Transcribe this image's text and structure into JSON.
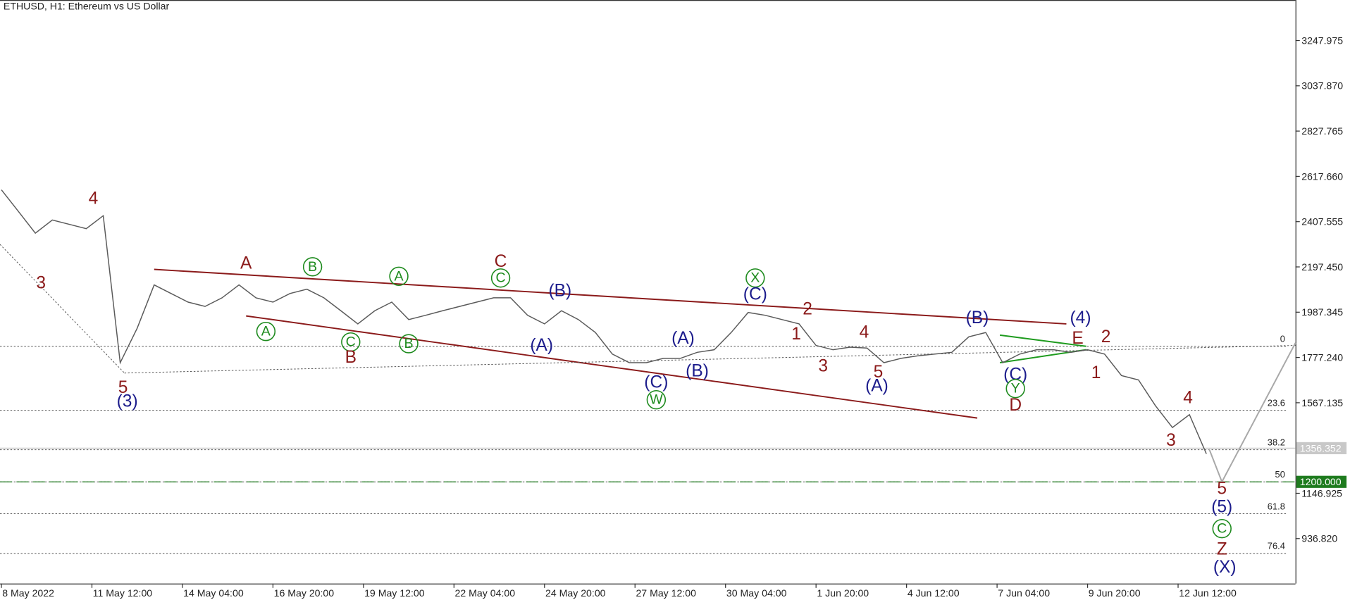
{
  "chart_data": {
    "type": "line",
    "title": "ETHUSD, H1:  Ethereum vs US Dollar",
    "color": "#5a5a5a",
    "x": [
      "2022-05-08 20:00",
      "2022-05-09 08:00",
      "2022-05-09 20:00",
      "2022-05-10 08:00",
      "2022-05-10 20:00",
      "2022-05-11 08:00",
      "2022-05-11 20:00",
      "2022-05-12 08:00",
      "2022-05-12 20:00",
      "2022-05-13 08:00",
      "2022-05-13 20:00",
      "2022-05-14 08:00",
      "2022-05-14 20:00",
      "2022-05-15 08:00",
      "2022-05-15 20:00",
      "2022-05-16 08:00",
      "2022-05-16 20:00",
      "2022-05-17 08:00",
      "2022-05-17 20:00",
      "2022-05-18 08:00",
      "2022-05-18 20:00",
      "2022-05-19 08:00",
      "2022-05-19 20:00",
      "2022-05-20 08:00",
      "2022-05-20 20:00",
      "2022-05-21 08:00",
      "2022-05-21 20:00",
      "2022-05-22 08:00",
      "2022-05-22 20:00",
      "2022-05-23 08:00",
      "2022-05-23 20:00",
      "2022-05-24 08:00",
      "2022-05-24 20:00",
      "2022-05-25 08:00",
      "2022-05-25 20:00",
      "2022-05-26 08:00",
      "2022-05-26 20:00",
      "2022-05-27 08:00",
      "2022-05-27 20:00",
      "2022-05-28 08:00",
      "2022-05-28 20:00",
      "2022-05-29 08:00",
      "2022-05-29 20:00",
      "2022-05-30 08:00",
      "2022-05-30 20:00",
      "2022-05-31 08:00",
      "2022-05-31 20:00",
      "2022-06-01 08:00",
      "2022-06-01 20:00",
      "2022-06-02 08:00",
      "2022-06-02 20:00",
      "2022-06-03 08:00",
      "2022-06-03 20:00",
      "2022-06-04 08:00",
      "2022-06-04 20:00",
      "2022-06-05 08:00",
      "2022-06-05 20:00",
      "2022-06-06 08:00",
      "2022-06-06 20:00",
      "2022-06-07 08:00",
      "2022-06-07 20:00",
      "2022-06-08 08:00",
      "2022-06-08 20:00",
      "2022-06-09 08:00",
      "2022-06-09 20:00",
      "2022-06-10 08:00",
      "2022-06-10 20:00",
      "2022-06-11 08:00",
      "2022-06-11 20:00",
      "2022-06-12 08:00",
      "2022-06-12 20:00",
      "2022-06-13 08:00"
    ],
    "values": [
      2555,
      2455,
      2354,
      2415,
      2395,
      2375,
      2435,
      1753,
      1913,
      2114,
      2074,
      2034,
      2014,
      2054,
      2114,
      2054,
      2034,
      2074,
      2094,
      2054,
      1994,
      1933,
      1994,
      2034,
      1953,
      1973,
      1994,
      2014,
      2034,
      2054,
      2054,
      1973,
      1933,
      1994,
      1953,
      1893,
      1793,
      1753,
      1753,
      1773,
      1773,
      1801,
      1813,
      1893,
      1986,
      1973,
      1953,
      1933,
      1833,
      1813,
      1825,
      1821,
      1753,
      1773,
      1785,
      1793,
      1801,
      1873,
      1893,
      1753,
      1793,
      1813,
      1813,
      1801,
      1813,
      1793,
      1693,
      1673,
      1553,
      1452,
      1512,
      1330
    ],
    "xlim": [
      "2022-05-08 19:00",
      "2022-06-15 23:00"
    ],
    "xticks": [
      {
        "value": "2022-05-08 20:00",
        "label": "8 May 2022"
      },
      {
        "value": "2022-05-11 12:00",
        "label": "11 May 12:00"
      },
      {
        "value": "2022-05-14 04:00",
        "label": "14 May 04:00"
      },
      {
        "value": "2022-05-16 20:00",
        "label": "16 May 20:00"
      },
      {
        "value": "2022-05-19 12:00",
        "label": "19 May 12:00"
      },
      {
        "value": "2022-05-22 04:00",
        "label": "22 May 04:00"
      },
      {
        "value": "2022-05-24 20:00",
        "label": "24 May 20:00"
      },
      {
        "value": "2022-05-27 12:00",
        "label": "27 May 12:00"
      },
      {
        "value": "2022-05-30 04:00",
        "label": "30 May 04:00"
      },
      {
        "value": "2022-06-01 20:00",
        "label": "1 Jun 20:00"
      },
      {
        "value": "2022-06-04 12:00",
        "label": "4 Jun 12:00"
      },
      {
        "value": "2022-06-07 04:00",
        "label": "7 Jun 04:00"
      },
      {
        "value": "2022-06-09 20:00",
        "label": "9 Jun 20:00"
      },
      {
        "value": "2022-06-12 12:00",
        "label": "12 Jun 12:00"
      }
    ],
    "ylim": [
      728,
      3436
    ],
    "yticks": [
      3247.975,
      {
        "value": 3037.87,
        "label": "3037.870"
      },
      2827.765,
      {
        "value": 2617.66,
        "label": "2617.660"
      },
      2407.555,
      {
        "value": 2197.45,
        "label": "2197.450"
      },
      1987.345,
      {
        "value": 1777.24,
        "label": "1777.240"
      },
      1567.135,
      1146.925,
      {
        "value": 936.82,
        "label": "936.820"
      }
    ],
    "fibonacci": {
      "color": "#555555",
      "levels": [
        {
          "level": 0,
          "price": 1829
        },
        {
          "level": 23.6,
          "price": 1532
        },
        {
          "level": 38.2,
          "price": 1349
        },
        {
          "level": 50,
          "price": 1200
        },
        {
          "level": 61.8,
          "price": 1052
        },
        {
          "level": 76.4,
          "price": 868
        }
      ]
    },
    "price_markers": [
      {
        "price": 1356.352,
        "color": "#c8c8c8",
        "line": "solid"
      },
      {
        "price": 1200,
        "label": "1200.000",
        "color": "#1e7b1e",
        "line": "dashed"
      }
    ],
    "trendlines": [
      {
        "color": "#8b1a1a",
        "dash": "solid",
        "points": [
          {
            "x": "2022-05-13 08:00",
            "y": 2186
          },
          {
            "x": "2022-06-09 05:00",
            "y": 1933
          }
        ]
      },
      {
        "color": "#8b1a1a",
        "dash": "solid",
        "points": [
          {
            "x": "2022-05-16 01:00",
            "y": 1970
          },
          {
            "x": "2022-06-06 14:00",
            "y": 1496
          }
        ]
      },
      {
        "color": "#1e9b1e",
        "dash": "solid",
        "points": [
          {
            "x": "2022-06-07 06:00",
            "y": 1881
          },
          {
            "x": "2022-06-09 19:00",
            "y": 1829
          }
        ]
      },
      {
        "color": "#1e9b1e",
        "dash": "solid",
        "points": [
          {
            "x": "2022-06-07 06:00",
            "y": 1753
          },
          {
            "x": "2022-06-09 19:00",
            "y": 1813
          }
        ]
      },
      {
        "color": "#555555",
        "dash": "dotted",
        "points": [
          {
            "x": "2022-05-08 19:00",
            "y": 2302
          },
          {
            "x": "2022-05-12 11:00",
            "y": 1705
          }
        ]
      },
      {
        "color": "#555555",
        "dash": "dotted",
        "points": [
          {
            "x": "2022-05-12 11:00",
            "y": 1705
          },
          {
            "x": "2022-06-15 23:00",
            "y": 1833
          }
        ]
      },
      {
        "color": "#a8a8a8",
        "dash": "solid",
        "points": [
          {
            "x": "2022-06-13 10:00",
            "y": 1352
          },
          {
            "x": "2022-06-13 19:00",
            "y": 1200
          },
          {
            "x": "2022-06-15 23:00",
            "y": 1845
          }
        ]
      }
    ],
    "annotations": [
      {
        "text": "3",
        "x": "2022-05-10 00:00",
        "y": 2122,
        "color": "#8b1a1a"
      },
      {
        "text": "4",
        "x": "2022-05-11 13:00",
        "y": 2515,
        "color": "#8b1a1a"
      },
      {
        "text": "5",
        "x": "2022-05-12 10:00",
        "y": 1637,
        "color": "#8b1a1a"
      },
      {
        "text": "(3)",
        "x": "2022-05-12 13:00",
        "y": 1573,
        "color": "#1c1c8c"
      },
      {
        "text": "A",
        "x": "2022-05-16 01:00",
        "y": 2214,
        "color": "#8b1a1a"
      },
      {
        "text": "B",
        "x": "2022-05-18 00:00",
        "y": 2198,
        "color": "#1e8b1e",
        "circled": true
      },
      {
        "text": "A",
        "x": "2022-05-16 15:00",
        "y": 1898,
        "color": "#1e8b1e",
        "circled": true
      },
      {
        "text": "C",
        "x": "2022-05-19 03:00",
        "y": 1849,
        "color": "#1e8b1e",
        "circled": true
      },
      {
        "text": "B",
        "x": "2022-05-19 03:00",
        "y": 1777,
        "color": "#8b1a1a"
      },
      {
        "text": "A",
        "x": "2022-05-20 13:00",
        "y": 2154,
        "color": "#1e8b1e",
        "circled": true
      },
      {
        "text": "B",
        "x": "2022-05-20 20:00",
        "y": 1841,
        "color": "#1e8b1e",
        "circled": true
      },
      {
        "text": "C",
        "x": "2022-05-23 13:00",
        "y": 2222,
        "color": "#8b1a1a"
      },
      {
        "text": "C",
        "x": "2022-05-23 13:00",
        "y": 2146,
        "color": "#1e8b1e",
        "circled": true
      },
      {
        "text": "(B)",
        "x": "2022-05-25 07:00",
        "y": 2086,
        "color": "#1c1c8c"
      },
      {
        "text": "(A)",
        "x": "2022-05-24 18:00",
        "y": 1833,
        "color": "#1c1c8c"
      },
      {
        "text": "(A)",
        "x": "2022-05-28 22:00",
        "y": 1865,
        "color": "#1c1c8c"
      },
      {
        "text": "(B)",
        "x": "2022-05-29 08:00",
        "y": 1713,
        "color": "#1c1c8c"
      },
      {
        "text": "(C)",
        "x": "2022-05-28 03:00",
        "y": 1661,
        "color": "#1c1c8c"
      },
      {
        "text": "W",
        "x": "2022-05-28 03:00",
        "y": 1581,
        "color": "#1e8b1e",
        "circled": true
      },
      {
        "text": "X",
        "x": "2022-05-31 01:00",
        "y": 2146,
        "color": "#1e8b1e",
        "circled": true
      },
      {
        "text": "(C)",
        "x": "2022-05-31 01:00",
        "y": 2070,
        "color": "#1c1c8c"
      },
      {
        "text": "2",
        "x": "2022-06-01 14:00",
        "y": 2002,
        "color": "#8b1a1a"
      },
      {
        "text": "1",
        "x": "2022-06-01 06:00",
        "y": 1885,
        "color": "#8b1a1a"
      },
      {
        "text": "4",
        "x": "2022-06-03 06:00",
        "y": 1893,
        "color": "#8b1a1a"
      },
      {
        "text": "3",
        "x": "2022-06-02 01:00",
        "y": 1737,
        "color": "#8b1a1a"
      },
      {
        "text": "5",
        "x": "2022-06-03 16:00",
        "y": 1709,
        "color": "#8b1a1a"
      },
      {
        "text": "(A)",
        "x": "2022-06-03 15:00",
        "y": 1645,
        "color": "#1c1c8c"
      },
      {
        "text": "(B)",
        "x": "2022-06-06 14:00",
        "y": 1961,
        "color": "#1c1c8c"
      },
      {
        "text": "(C)",
        "x": "2022-06-07 17:00",
        "y": 1697,
        "color": "#1c1c8c"
      },
      {
        "text": "Y",
        "x": "2022-06-07 17:00",
        "y": 1633,
        "color": "#1e8b1e",
        "circled": true
      },
      {
        "text": "D",
        "x": "2022-06-07 17:00",
        "y": 1556,
        "color": "#8b1a1a"
      },
      {
        "text": "(4)",
        "x": "2022-06-09 15:00",
        "y": 1961,
        "color": "#1c1c8c"
      },
      {
        "text": "E",
        "x": "2022-06-09 13:00",
        "y": 1865,
        "color": "#8b1a1a"
      },
      {
        "text": "2",
        "x": "2022-06-10 09:00",
        "y": 1873,
        "color": "#8b1a1a"
      },
      {
        "text": "1",
        "x": "2022-06-10 02:00",
        "y": 1705,
        "color": "#8b1a1a"
      },
      {
        "text": "4",
        "x": "2022-06-12 19:00",
        "y": 1589,
        "color": "#8b1a1a"
      },
      {
        "text": "3",
        "x": "2022-06-12 07:00",
        "y": 1392,
        "color": "#8b1a1a"
      },
      {
        "text": "5",
        "x": "2022-06-13 19:00",
        "y": 1168,
        "color": "#8b1a1a"
      },
      {
        "text": "(5)",
        "x": "2022-06-13 19:00",
        "y": 1083,
        "color": "#1c1c8c"
      },
      {
        "text": "C",
        "x": "2022-06-13 19:00",
        "y": 983,
        "color": "#1e8b1e",
        "circled": true
      },
      {
        "text": "Z",
        "x": "2022-06-13 19:00",
        "y": 887,
        "color": "#8b1a1a"
      },
      {
        "text": "(X)",
        "x": "2022-06-13 21:00",
        "y": 803,
        "color": "#1c1c8c"
      }
    ]
  }
}
